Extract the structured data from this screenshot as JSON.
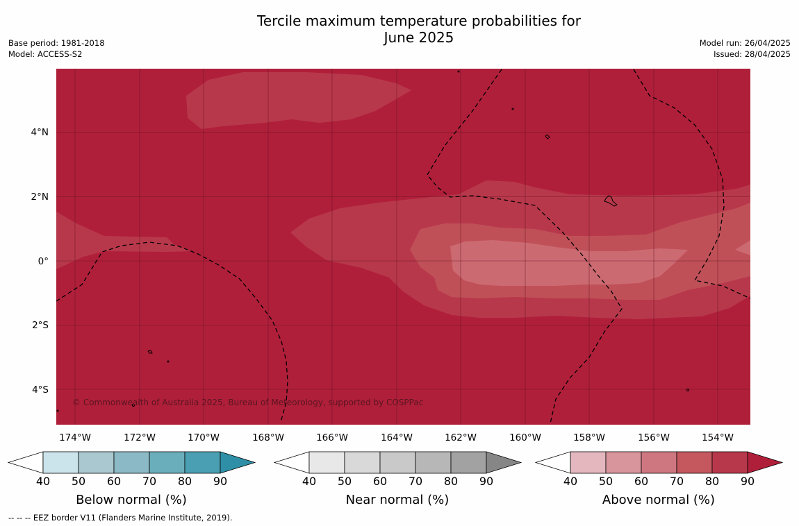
{
  "title": {
    "line1": "Tercile maximum temperature probabilities for",
    "line2": "June 2025"
  },
  "meta_left": {
    "base_period": "Base period: 1981-2018",
    "model": "Model: ACCESS-S2"
  },
  "meta_right": {
    "model_run": "Model run: 26/04/2025",
    "issued": "Issued: 28/04/2025"
  },
  "map": {
    "lat_labels": [
      "4°N",
      "2°N",
      "0°",
      "2°S",
      "4°S"
    ],
    "lon_labels": [
      "174°W",
      "172°W",
      "170°W",
      "168°W",
      "166°W",
      "164°W",
      "162°W",
      "160°W",
      "158°W",
      "156°W",
      "154°W"
    ],
    "copyright": "© Commonwealth of Australia 2025, Bureau of Meteorology, supported by COSPPac",
    "colors": {
      "above_70_80": "#c05058",
      "above_80_90": "#b8384b",
      "above_90": "#b01f3a"
    }
  },
  "colorbars": [
    {
      "title": "Below normal (%)",
      "labels": [
        "40",
        "50",
        "60",
        "70",
        "80",
        "90"
      ],
      "colors": [
        "#ffffff",
        "#cbe3ea",
        "#a9c8cf",
        "#8cb9c6",
        "#6aaebc",
        "#4aa0b2",
        "#2e8fa6"
      ]
    },
    {
      "title": "Near normal (%)",
      "labels": [
        "40",
        "50",
        "60",
        "70",
        "80",
        "90"
      ],
      "colors": [
        "#ffffff",
        "#e8e8e8",
        "#d9d9d9",
        "#c9c9c9",
        "#b7b7b7",
        "#a2a2a2",
        "#868686"
      ]
    },
    {
      "title": "Above normal (%)",
      "labels": [
        "40",
        "50",
        "60",
        "70",
        "80",
        "90"
      ],
      "colors": [
        "#ffffff",
        "#e3b7bd",
        "#d9959c",
        "#ce7780",
        "#c5585f",
        "#b8384b",
        "#b01f3a"
      ]
    }
  ],
  "footer": "-- -- -- EEZ border V11 (Flanders Marine Institute, 2019)."
}
